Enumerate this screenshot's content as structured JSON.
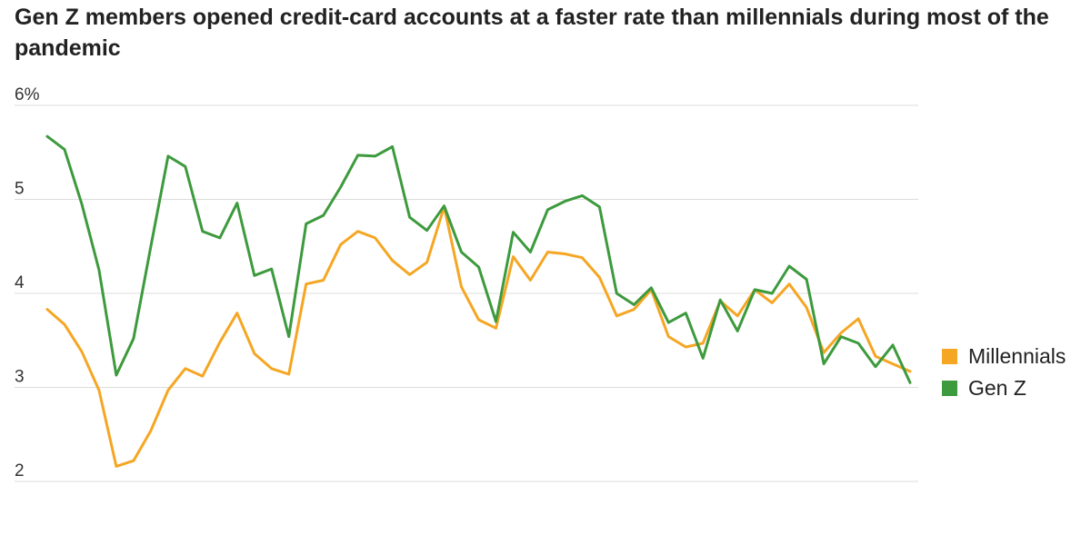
{
  "chart_data": {
    "type": "line",
    "title": "Gen Z members opened credit-card accounts at a faster rate than millennials during most of the pandemic",
    "y_tick_labels": [
      "6%",
      "5",
      "4",
      "3",
      "2"
    ],
    "y_ticks": [
      6,
      5,
      4,
      3,
      2
    ],
    "ylim": [
      2,
      6
    ],
    "grid": true,
    "legend_position": "right",
    "series": [
      {
        "name": "Millennials",
        "color": "#f5a623",
        "values": [
          3.83,
          3.67,
          3.38,
          2.97,
          2.16,
          2.22,
          2.54,
          2.97,
          3.2,
          3.12,
          3.48,
          3.79,
          3.36,
          3.2,
          3.14,
          4.1,
          4.14,
          4.52,
          4.66,
          4.59,
          4.35,
          4.2,
          4.33,
          4.92,
          4.07,
          3.72,
          3.63,
          4.39,
          4.14,
          4.44,
          4.42,
          4.38,
          4.17,
          3.76,
          3.83,
          4.04,
          3.54,
          3.43,
          3.47,
          3.92,
          3.76,
          4.04,
          3.9,
          4.1,
          3.85,
          3.37,
          3.58,
          3.73,
          3.33,
          3.25,
          3.17
        ]
      },
      {
        "name": "Gen Z",
        "color": "#3d9a3d",
        "values": [
          5.67,
          5.53,
          4.95,
          4.25,
          3.13,
          3.52,
          4.5,
          5.46,
          5.35,
          4.66,
          4.59,
          4.96,
          4.19,
          4.26,
          3.54,
          4.74,
          4.83,
          5.13,
          5.47,
          5.46,
          5.56,
          4.81,
          4.67,
          4.93,
          4.44,
          4.28,
          3.7,
          4.65,
          4.44,
          4.89,
          4.98,
          5.04,
          4.92,
          4.0,
          3.88,
          4.06,
          3.69,
          3.79,
          3.31,
          3.93,
          3.6,
          4.04,
          4.0,
          4.29,
          4.15,
          3.25,
          3.54,
          3.47,
          3.22,
          3.45,
          3.05
        ]
      }
    ]
  }
}
